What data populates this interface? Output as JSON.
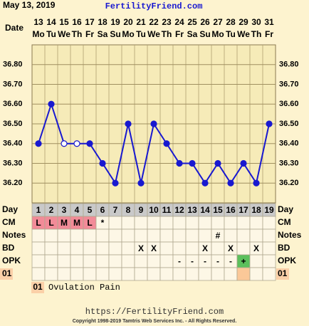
{
  "header": {
    "date": "May 13, 2019",
    "site": "FertilityFriend.com"
  },
  "chart_data": {
    "type": "line",
    "x_label": "Date",
    "categories": [
      "13",
      "14",
      "15",
      "16",
      "17",
      "18",
      "19",
      "20",
      "21",
      "22",
      "23",
      "24",
      "25",
      "26",
      "27",
      "28",
      "29",
      "30",
      "31"
    ],
    "weekdays": [
      "Mo",
      "Tu",
      "We",
      "Th",
      "Fr",
      "Sa",
      "Su",
      "Mo",
      "Tu",
      "We",
      "Th",
      "Fr",
      "Sa",
      "Su",
      "Mo",
      "Tu",
      "We",
      "Th",
      "Fr"
    ],
    "series": [
      {
        "color": "#1818d0",
        "values": [
          36.4,
          36.6,
          36.4,
          36.4,
          36.4,
          36.3,
          36.2,
          36.5,
          36.2,
          36.5,
          36.4,
          36.3,
          36.3,
          36.2,
          36.3,
          36.2,
          36.3,
          36.2,
          36.5
        ],
        "hollow": [
          false,
          false,
          true,
          true,
          false,
          false,
          false,
          false,
          false,
          false,
          false,
          false,
          false,
          false,
          false,
          false,
          false,
          false,
          false
        ]
      }
    ],
    "ylim": [
      36.1,
      36.9
    ],
    "yticks": [
      {
        "value": 36.2,
        "label": "36.20"
      },
      {
        "value": 36.3,
        "label": "36.30"
      },
      {
        "value": 36.4,
        "label": "36.40"
      },
      {
        "value": 36.5,
        "label": "36.50"
      },
      {
        "value": 36.6,
        "label": "36.60"
      },
      {
        "value": 36.7,
        "label": "36.70"
      },
      {
        "value": 36.8,
        "label": "36.80"
      }
    ],
    "grid": true
  },
  "rows": [
    {
      "label": "Day",
      "cells": [
        1,
        2,
        3,
        4,
        5,
        6,
        7,
        8,
        9,
        10,
        11,
        12,
        13,
        14,
        15,
        16,
        17,
        18,
        19
      ],
      "background": "#c9c9c9"
    },
    {
      "label": "CM",
      "cells": [
        "L",
        "L",
        "M",
        "M",
        "L",
        "*",
        null,
        null,
        null,
        null,
        null,
        null,
        null,
        null,
        null,
        null,
        null,
        null,
        null
      ],
      "cell_colors": [
        "#f28b98",
        "#f28b98",
        "#f28b98",
        "#f28b98",
        "#f28b98",
        null,
        null,
        null,
        null,
        null,
        null,
        null,
        null,
        null,
        null,
        null,
        null,
        null,
        null
      ]
    },
    {
      "label": "Notes",
      "cells": [
        null,
        null,
        null,
        null,
        null,
        null,
        null,
        null,
        null,
        null,
        null,
        null,
        null,
        null,
        "#",
        null,
        null,
        null,
        null
      ]
    },
    {
      "label": "BD",
      "cells": [
        null,
        null,
        null,
        null,
        null,
        null,
        null,
        null,
        "X",
        "X",
        null,
        null,
        null,
        "X",
        null,
        "X",
        null,
        "X",
        null
      ]
    },
    {
      "label": "OPK",
      "cells": [
        null,
        null,
        null,
        null,
        null,
        null,
        null,
        null,
        null,
        null,
        null,
        "-",
        "-",
        "-",
        "-",
        "-",
        "+",
        null,
        null
      ],
      "cell_colors": [
        null,
        null,
        null,
        null,
        null,
        null,
        null,
        null,
        null,
        null,
        null,
        null,
        null,
        null,
        null,
        null,
        "#5cc05c",
        null,
        null
      ]
    },
    {
      "label": "01",
      "label_color": "#fbd0a8",
      "cells": [
        null,
        null,
        null,
        null,
        null,
        null,
        null,
        null,
        null,
        null,
        null,
        null,
        null,
        null,
        null,
        null,
        null,
        null,
        null
      ],
      "cell_colors": [
        null,
        null,
        null,
        null,
        null,
        null,
        null,
        null,
        null,
        null,
        null,
        null,
        null,
        null,
        null,
        null,
        "#fbc898",
        null,
        null
      ]
    }
  ],
  "legend": {
    "code": "01",
    "text": "Ovulation Pain",
    "color": "#fbd0a8"
  },
  "footer": {
    "url": "https://FertilityFriend.com",
    "copyright": "Copyright 1998-2019 Tamtris Web Services Inc. - All Rights Reserved."
  }
}
